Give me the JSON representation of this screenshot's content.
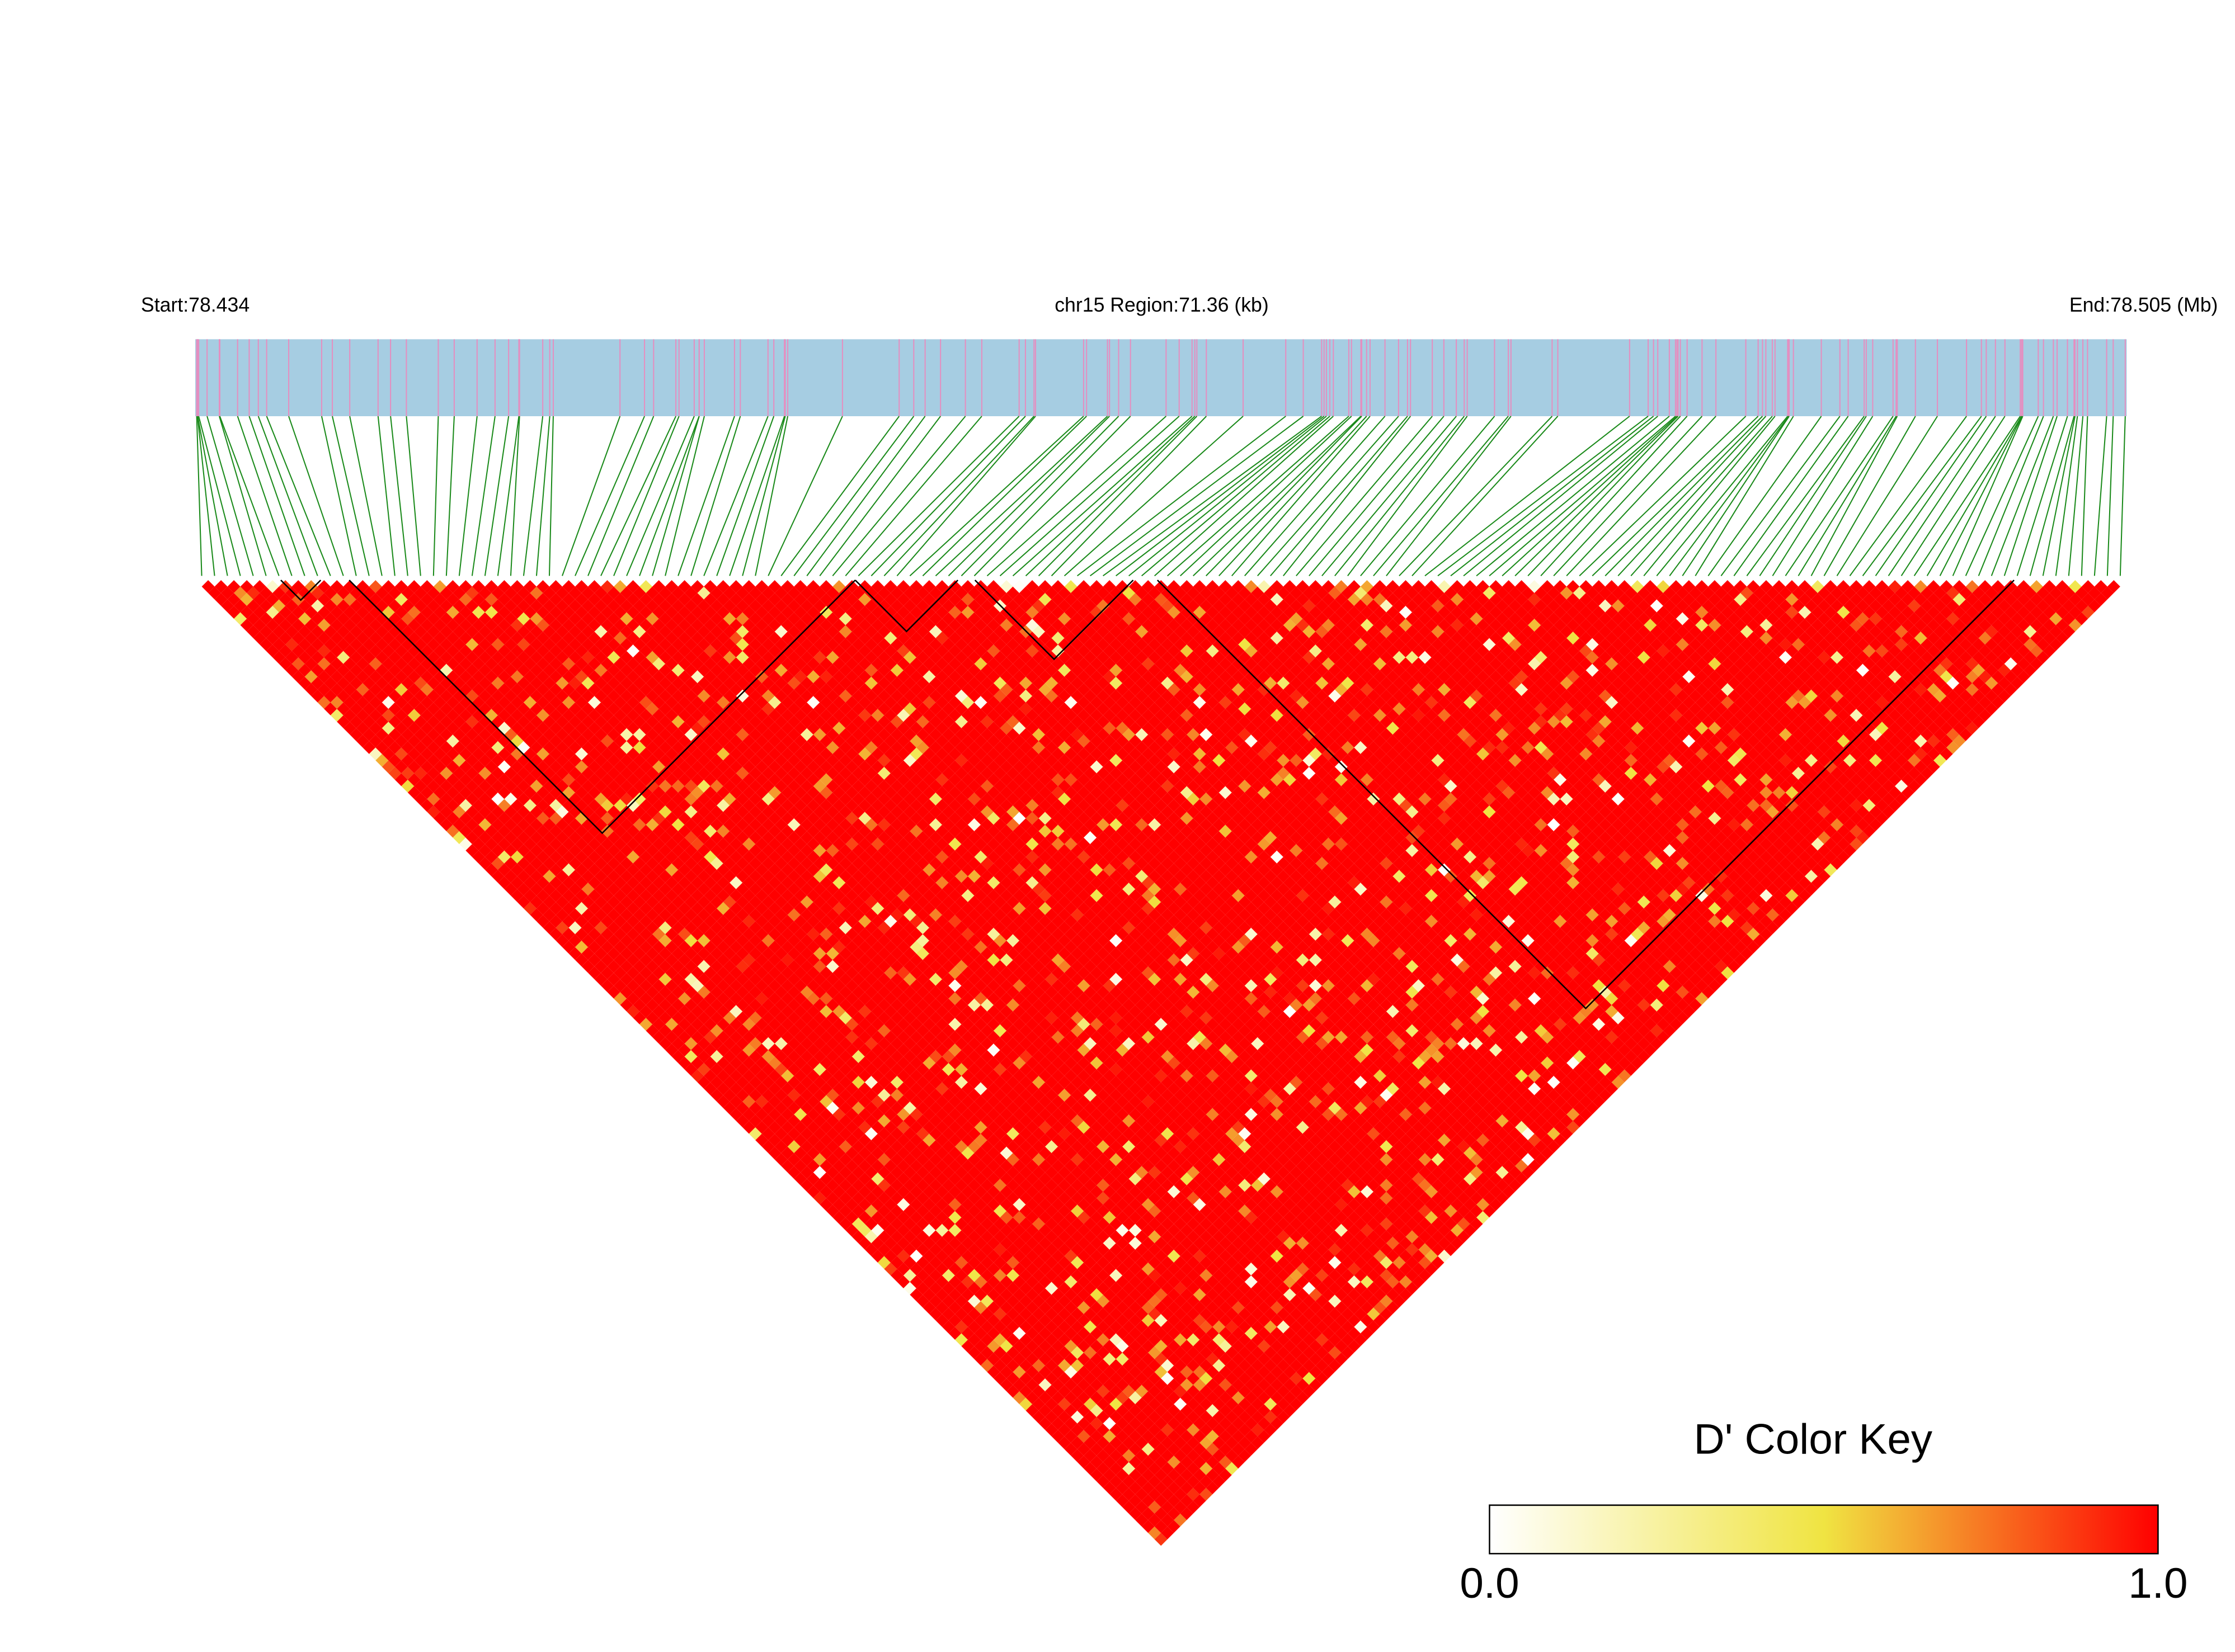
{
  "header": {
    "start": "Start:78.434",
    "region": "chr15 Region:71.36 (kb)",
    "end": "End:78.505 (Mb)"
  },
  "color_key": {
    "title": "D' Color Key",
    "colors": [
      "#ffffff",
      "#f0e442",
      "#ff0000"
    ],
    "ticks": [
      {
        "value": 0,
        "label": "0.0"
      },
      {
        "value": 1,
        "label": "1.0"
      }
    ]
  }
}
